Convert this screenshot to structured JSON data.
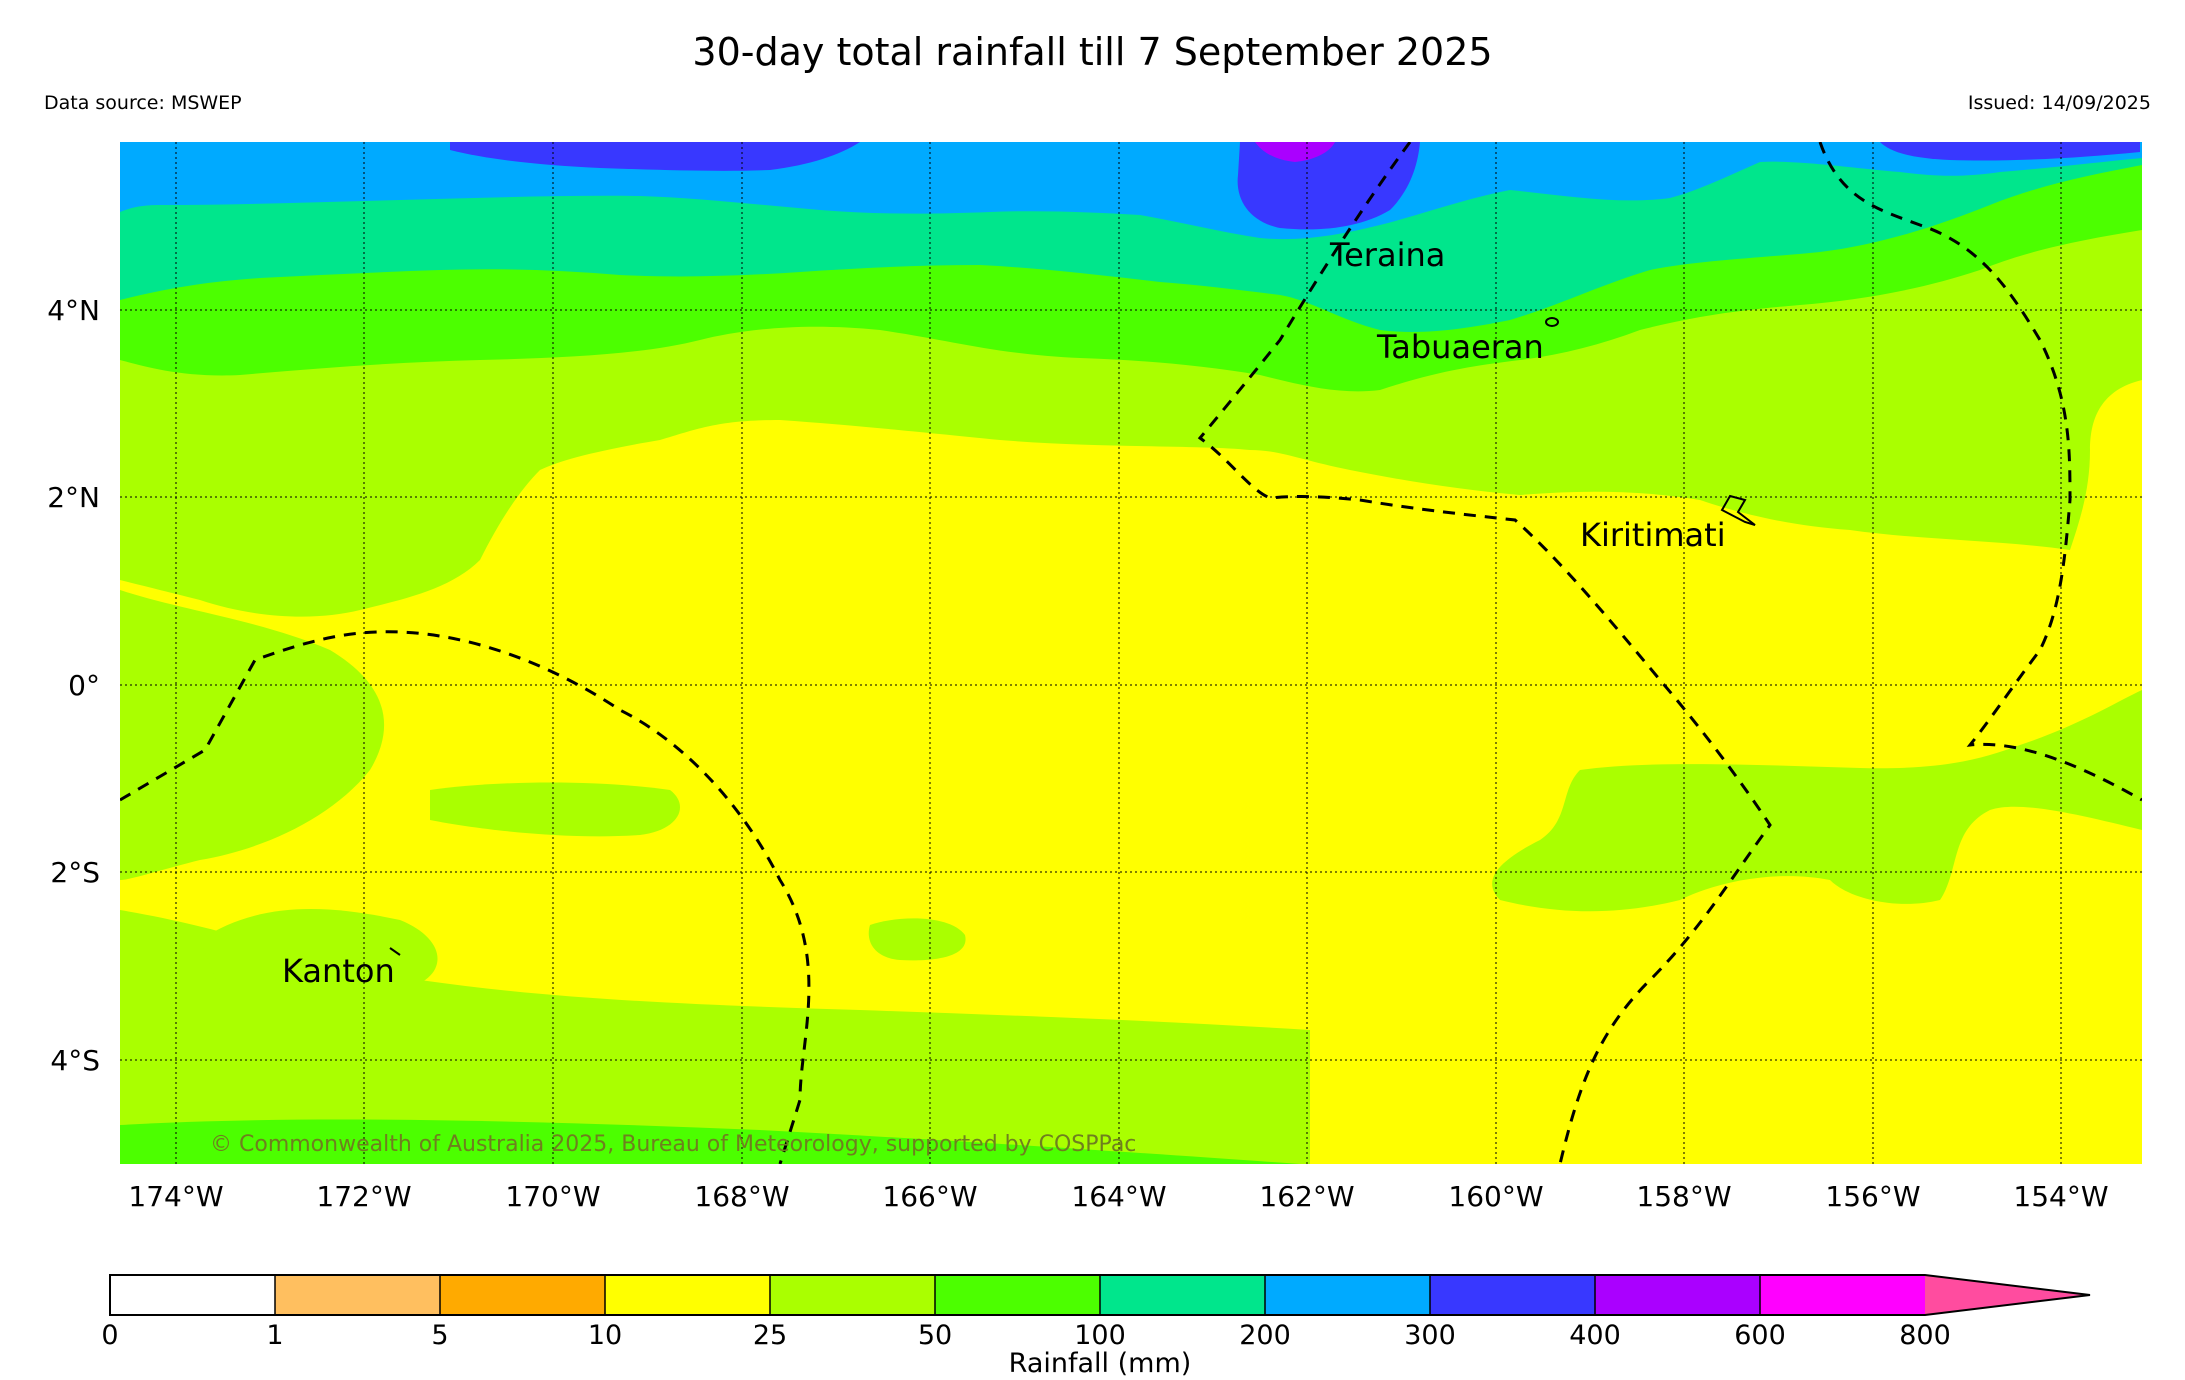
{
  "title": "30-day total rainfall till 7 September 2025",
  "data_source": "Data source: MSWEP",
  "issued": "Issued: 14/09/2025",
  "copyright": "© Commonwealth of Australia 2025, Bureau of Meteorology, supported by COSPPac",
  "lat_labels": [
    "4°N",
    "2°N",
    "0°",
    "2°S",
    "4°S"
  ],
  "lon_labels": [
    "174°W",
    "172°W",
    "170°W",
    "168°W",
    "166°W",
    "164°W",
    "162°W",
    "160°W",
    "158°W",
    "156°W",
    "154°W"
  ],
  "places": {
    "teraina": "Teraina",
    "tabuaeran": "Tabuaeran",
    "kiritimati": "Kiritimati",
    "kanton": "Kanton"
  },
  "colorbar": {
    "title": "Rainfall (mm)",
    "ticks": [
      "0",
      "1",
      "5",
      "10",
      "25",
      "50",
      "100",
      "200",
      "300",
      "400",
      "600",
      "800"
    ],
    "colors": [
      "#ffffff",
      "#ffbf5f",
      "#ffaa00",
      "#ffff00",
      "#aaff00",
      "#4cff00",
      "#00e68c",
      "#00aaff",
      "#3838ff",
      "#aa00ff",
      "#ff00ff",
      "#ff4c9f"
    ]
  },
  "map_colors": {
    "r10_25": "#ffff00",
    "r25_50": "#aaff00",
    "r50_100": "#4cff00",
    "r100_200": "#00e68c",
    "r200_300": "#00aaff",
    "r300_400": "#3838ff",
    "r400_600": "#aa00ff"
  }
}
